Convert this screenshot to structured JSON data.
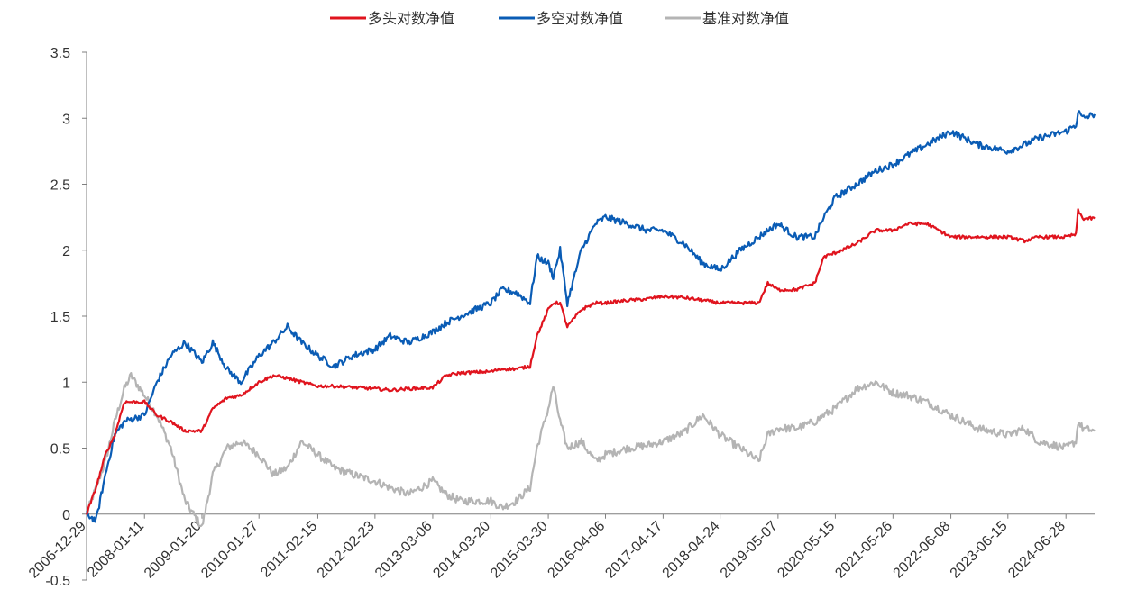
{
  "chart_data": {
    "type": "line",
    "title": "",
    "xlabel": "",
    "ylabel": "",
    "ylim": [
      -0.5,
      3.5
    ],
    "yticks": [
      -0.5,
      0,
      0.5,
      1,
      1.5,
      2,
      2.5,
      3,
      3.5
    ],
    "ytick_labels": [
      "-0.5",
      "0",
      "0.5",
      "1",
      "1.5",
      "2",
      "2.5",
      "3",
      "3.5"
    ],
    "xticks": [
      "2006-12-29",
      "2008-01-11",
      "2009-01-20",
      "2010-01-27",
      "2011-02-15",
      "2012-02-23",
      "2013-03-06",
      "2014-03-20",
      "2015-03-30",
      "2016-04-06",
      "2017-04-17",
      "2018-04-24",
      "2019-05-07",
      "2020-05-15",
      "2021-05-26",
      "2022-06-08",
      "2023-06-15",
      "2024-06-28"
    ],
    "legend_position": "top",
    "grid": false,
    "series": [
      {
        "name": "多头对数净值",
        "color": "#e0141e",
        "x": [
          "2006-12-29",
          "2007-03-01",
          "2007-05-01",
          "2007-07-01",
          "2007-09-01",
          "2007-10-15",
          "2008-01-11",
          "2008-04-01",
          "2008-07-01",
          "2008-10-01",
          "2009-01-20",
          "2009-04-01",
          "2009-07-01",
          "2009-10-01",
          "2010-01-27",
          "2010-05-01",
          "2010-08-01",
          "2010-11-01",
          "2011-02-15",
          "2011-06-01",
          "2011-10-01",
          "2012-02-23",
          "2012-06-01",
          "2012-10-01",
          "2013-03-06",
          "2013-06-01",
          "2013-09-01",
          "2014-03-20",
          "2014-06-01",
          "2014-09-01",
          "2014-12-01",
          "2015-01-15",
          "2015-03-30",
          "2015-05-01",
          "2015-06-15",
          "2015-08-01",
          "2015-11-01",
          "2016-02-01",
          "2016-04-06",
          "2016-09-01",
          "2017-01-01",
          "2017-04-17",
          "2017-09-01",
          "2018-01-01",
          "2018-04-24",
          "2018-09-01",
          "2019-01-01",
          "2019-03-01",
          "2019-05-07",
          "2019-09-01",
          "2020-01-01",
          "2020-03-01",
          "2020-05-15",
          "2020-10-01",
          "2021-02-01",
          "2021-05-26",
          "2021-09-01",
          "2022-01-01",
          "2022-06-08",
          "2022-12-01",
          "2023-06-15",
          "2023-10-01",
          "2024-01-01",
          "2024-06-28",
          "2024-09-01",
          "2024-09-15",
          "2024-10-15",
          "2025-01-01"
        ],
        "values": [
          0,
          0.2,
          0.45,
          0.6,
          0.85,
          0.85,
          0.85,
          0.75,
          0.7,
          0.63,
          0.63,
          0.8,
          0.88,
          0.9,
          1.0,
          1.05,
          1.03,
          1.0,
          0.97,
          0.97,
          0.96,
          0.95,
          0.94,
          0.95,
          0.96,
          1.05,
          1.07,
          1.08,
          1.1,
          1.1,
          1.12,
          1.35,
          1.55,
          1.6,
          1.6,
          1.42,
          1.55,
          1.6,
          1.6,
          1.62,
          1.63,
          1.65,
          1.64,
          1.62,
          1.6,
          1.6,
          1.6,
          1.75,
          1.7,
          1.7,
          1.75,
          1.95,
          1.98,
          2.05,
          2.15,
          2.15,
          2.2,
          2.2,
          2.1,
          2.1,
          2.1,
          2.07,
          2.1,
          2.1,
          2.12,
          2.3,
          2.24,
          2.24
        ]
      },
      {
        "name": "多空对数净值",
        "color": "#0a5cb5",
        "x": [
          "2006-12-29",
          "2007-03-01",
          "2007-05-01",
          "2007-07-01",
          "2007-09-01",
          "2007-10-15",
          "2008-01-11",
          "2008-04-01",
          "2008-07-01",
          "2008-10-01",
          "2009-01-20",
          "2009-04-01",
          "2009-07-01",
          "2009-10-01",
          "2010-01-27",
          "2010-05-01",
          "2010-08-01",
          "2010-11-01",
          "2011-02-15",
          "2011-06-01",
          "2011-10-01",
          "2012-02-23",
          "2012-06-01",
          "2012-10-01",
          "2013-03-06",
          "2013-06-01",
          "2013-09-01",
          "2014-03-20",
          "2014-06-01",
          "2014-09-01",
          "2014-12-01",
          "2015-01-15",
          "2015-03-30",
          "2015-05-01",
          "2015-06-15",
          "2015-08-01",
          "2015-11-01",
          "2016-02-01",
          "2016-04-06",
          "2016-09-01",
          "2017-01-01",
          "2017-04-17",
          "2017-09-01",
          "2018-01-01",
          "2018-04-24",
          "2018-09-01",
          "2019-01-01",
          "2019-03-01",
          "2019-05-07",
          "2019-09-01",
          "2020-01-01",
          "2020-03-01",
          "2020-05-15",
          "2020-10-01",
          "2021-02-01",
          "2021-05-26",
          "2021-09-01",
          "2022-01-01",
          "2022-06-08",
          "2022-12-01",
          "2023-06-15",
          "2023-10-01",
          "2024-01-01",
          "2024-06-28",
          "2024-09-01",
          "2024-09-15",
          "2024-10-15",
          "2025-01-01"
        ],
        "values": [
          0,
          -0.05,
          0.3,
          0.6,
          0.7,
          0.72,
          0.75,
          1.0,
          1.2,
          1.3,
          1.15,
          1.3,
          1.1,
          1.0,
          1.2,
          1.3,
          1.42,
          1.3,
          1.2,
          1.12,
          1.2,
          1.25,
          1.35,
          1.3,
          1.38,
          1.45,
          1.5,
          1.6,
          1.7,
          1.68,
          1.6,
          1.95,
          1.9,
          1.8,
          2.0,
          1.6,
          2.0,
          2.2,
          2.25,
          2.2,
          2.15,
          2.15,
          2.05,
          1.9,
          1.85,
          2.0,
          2.1,
          2.15,
          2.2,
          2.1,
          2.1,
          2.25,
          2.4,
          2.5,
          2.6,
          2.65,
          2.72,
          2.8,
          2.9,
          2.8,
          2.75,
          2.8,
          2.85,
          2.9,
          2.95,
          3.05,
          3.0,
          3.03
        ]
      },
      {
        "name": "基准对数净值",
        "color": "#b4b4b4",
        "x": [
          "2006-12-29",
          "2007-03-01",
          "2007-05-01",
          "2007-07-01",
          "2007-09-01",
          "2007-10-15",
          "2008-01-11",
          "2008-04-01",
          "2008-07-01",
          "2008-10-01",
          "2009-01-20",
          "2009-04-01",
          "2009-07-01",
          "2009-10-01",
          "2010-01-27",
          "2010-05-01",
          "2010-08-01",
          "2010-11-01",
          "2011-02-15",
          "2011-06-01",
          "2011-10-01",
          "2012-02-23",
          "2012-06-01",
          "2012-10-01",
          "2013-03-06",
          "2013-06-01",
          "2013-09-01",
          "2014-03-20",
          "2014-06-01",
          "2014-09-01",
          "2014-12-01",
          "2015-01-15",
          "2015-03-30",
          "2015-05-01",
          "2015-06-15",
          "2015-08-01",
          "2015-11-01",
          "2016-02-01",
          "2016-04-06",
          "2016-09-01",
          "2017-01-01",
          "2017-04-17",
          "2017-09-01",
          "2018-01-01",
          "2018-04-24",
          "2018-09-01",
          "2019-01-01",
          "2019-03-01",
          "2019-05-07",
          "2019-09-01",
          "2020-01-01",
          "2020-03-01",
          "2020-05-15",
          "2020-10-01",
          "2021-02-01",
          "2021-05-26",
          "2021-09-01",
          "2022-01-01",
          "2022-06-08",
          "2022-12-01",
          "2023-06-15",
          "2023-10-01",
          "2024-01-01",
          "2024-06-28",
          "2024-09-01",
          "2024-09-15",
          "2024-10-15",
          "2025-01-01"
        ],
        "values": [
          0,
          0.2,
          0.4,
          0.7,
          0.95,
          1.05,
          0.9,
          0.75,
          0.5,
          0.1,
          -0.1,
          0.3,
          0.5,
          0.55,
          0.45,
          0.3,
          0.35,
          0.55,
          0.45,
          0.35,
          0.3,
          0.25,
          0.2,
          0.15,
          0.25,
          0.15,
          0.1,
          0.1,
          0.05,
          0.1,
          0.2,
          0.5,
          0.8,
          0.97,
          0.7,
          0.5,
          0.55,
          0.4,
          0.45,
          0.5,
          0.52,
          0.55,
          0.62,
          0.75,
          0.6,
          0.5,
          0.4,
          0.6,
          0.65,
          0.65,
          0.7,
          0.75,
          0.8,
          0.95,
          1.0,
          0.92,
          0.9,
          0.85,
          0.75,
          0.65,
          0.6,
          0.65,
          0.55,
          0.5,
          0.55,
          0.7,
          0.65,
          0.63
        ]
      }
    ]
  }
}
